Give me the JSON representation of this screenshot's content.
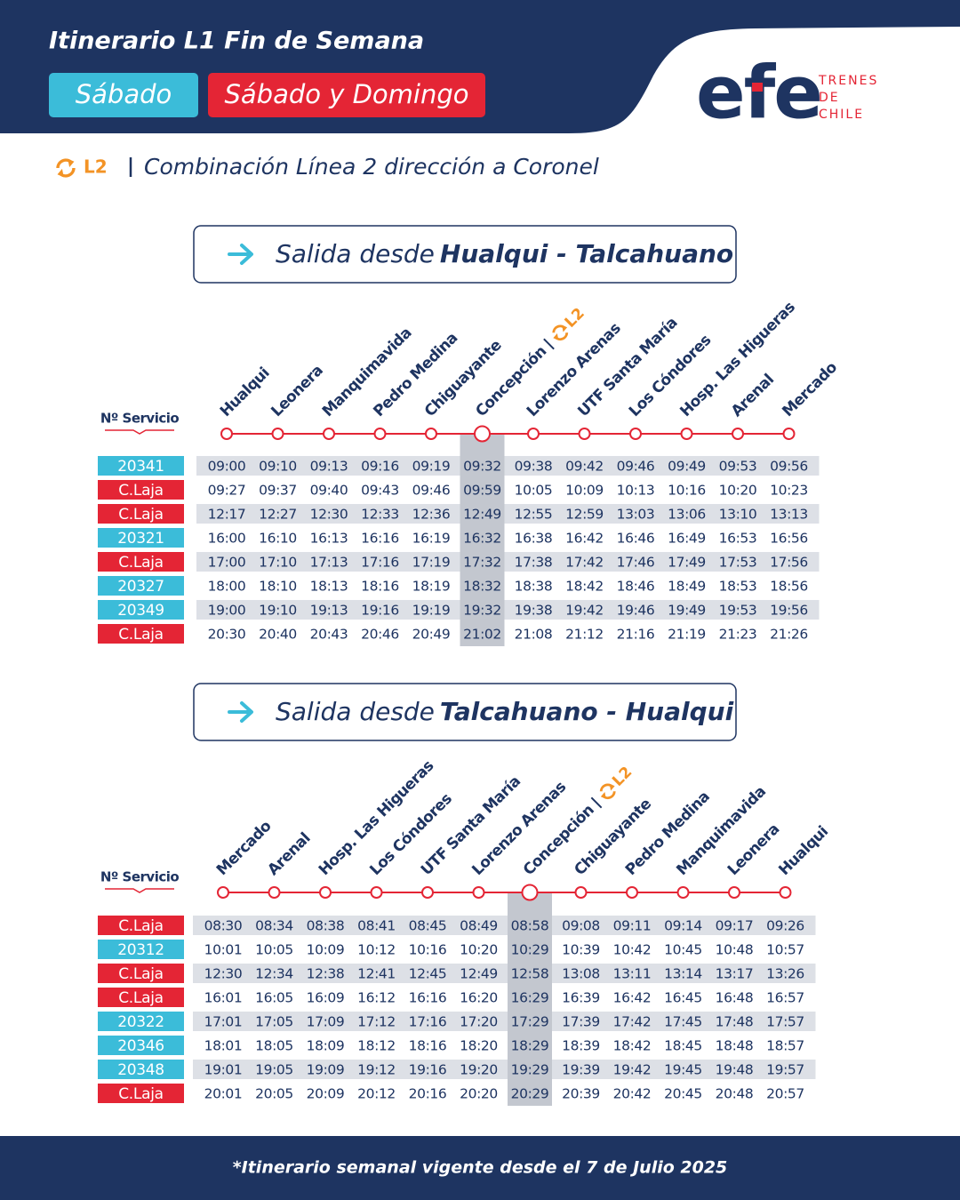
{
  "header": {
    "title": "Itinerario L1 Fin de Semana",
    "tags": [
      "Sábado",
      "Sábado y Domingo"
    ]
  },
  "logo": {
    "name": "efe",
    "tagline": [
      "TRENES",
      "DE",
      "CHILE"
    ]
  },
  "legend": {
    "badge": "L2",
    "text": "Combinación Línea 2 dirección a Coronel"
  },
  "sections": [
    {
      "heading": {
        "prefix": "Salida desde",
        "route": "Hualqui - Talcahuano"
      },
      "service_label": "Nº Servicio",
      "stations": [
        {
          "name": "Hualqui"
        },
        {
          "name": "Leonera"
        },
        {
          "name": "Manquimavida"
        },
        {
          "name": "Pedro Medina"
        },
        {
          "name": "Chiguayante"
        },
        {
          "name": "Concepción",
          "transfer": "L2"
        },
        {
          "name": "Lorenzo Arenas"
        },
        {
          "name": "UTF Santa María"
        },
        {
          "name": "Los Cóndores"
        },
        {
          "name": "Hosp. Las Higueras"
        },
        {
          "name": "Arenal"
        },
        {
          "name": "Mercado"
        }
      ],
      "rows": [
        {
          "service": "20341",
          "times": [
            "09:00",
            "09:10",
            "09:13",
            "09:16",
            "09:19",
            "09:32",
            "09:38",
            "09:42",
            "09:46",
            "09:49",
            "09:53",
            "09:56"
          ]
        },
        {
          "service": "C.Laja",
          "times": [
            "09:27",
            "09:37",
            "09:40",
            "09:43",
            "09:46",
            "09:59",
            "10:05",
            "10:09",
            "10:13",
            "10:16",
            "10:20",
            "10:23"
          ]
        },
        {
          "service": "C.Laja",
          "times": [
            "12:17",
            "12:27",
            "12:30",
            "12:33",
            "12:36",
            "12:49",
            "12:55",
            "12:59",
            "13:03",
            "13:06",
            "13:10",
            "13:13"
          ]
        },
        {
          "service": "20321",
          "times": [
            "16:00",
            "16:10",
            "16:13",
            "16:16",
            "16:19",
            "16:32",
            "16:38",
            "16:42",
            "16:46",
            "16:49",
            "16:53",
            "16:56"
          ]
        },
        {
          "service": "C.Laja",
          "times": [
            "17:00",
            "17:10",
            "17:13",
            "17:16",
            "17:19",
            "17:32",
            "17:38",
            "17:42",
            "17:46",
            "17:49",
            "17:53",
            "17:56"
          ]
        },
        {
          "service": "20327",
          "times": [
            "18:00",
            "18:10",
            "18:13",
            "18:16",
            "18:19",
            "18:32",
            "18:38",
            "18:42",
            "18:46",
            "18:49",
            "18:53",
            "18:56"
          ]
        },
        {
          "service": "20349",
          "times": [
            "19:00",
            "19:10",
            "19:13",
            "19:16",
            "19:19",
            "19:32",
            "19:38",
            "19:42",
            "19:46",
            "19:49",
            "19:53",
            "19:56"
          ]
        },
        {
          "service": "C.Laja",
          "times": [
            "20:30",
            "20:40",
            "20:43",
            "20:46",
            "20:49",
            "21:02",
            "21:08",
            "21:12",
            "21:16",
            "21:19",
            "21:23",
            "21:26"
          ]
        }
      ]
    },
    {
      "heading": {
        "prefix": "Salida desde",
        "route": "Talcahuano - Hualqui"
      },
      "service_label": "Nº Servicio",
      "stations": [
        {
          "name": "Mercado"
        },
        {
          "name": "Arenal"
        },
        {
          "name": "Hosp. Las Higueras"
        },
        {
          "name": "Los Cóndores"
        },
        {
          "name": "UTF Santa María"
        },
        {
          "name": "Lorenzo Arenas"
        },
        {
          "name": "Concepción",
          "transfer": "L2"
        },
        {
          "name": "Chiguayante"
        },
        {
          "name": "Pedro Medina"
        },
        {
          "name": "Manquimavida"
        },
        {
          "name": "Leonera"
        },
        {
          "name": "Hualqui"
        }
      ],
      "rows": [
        {
          "service": "C.Laja",
          "times": [
            "08:30",
            "08:34",
            "08:38",
            "08:41",
            "08:45",
            "08:49",
            "08:58",
            "09:08",
            "09:11",
            "09:14",
            "09:17",
            "09:26"
          ]
        },
        {
          "service": "20312",
          "times": [
            "10:01",
            "10:05",
            "10:09",
            "10:12",
            "10:16",
            "10:20",
            "10:29",
            "10:39",
            "10:42",
            "10:45",
            "10:48",
            "10:57"
          ]
        },
        {
          "service": "C.Laja",
          "times": [
            "12:30",
            "12:34",
            "12:38",
            "12:41",
            "12:45",
            "12:49",
            "12:58",
            "13:08",
            "13:11",
            "13:14",
            "13:17",
            "13:26"
          ]
        },
        {
          "service": "C.Laja",
          "times": [
            "16:01",
            "16:05",
            "16:09",
            "16:12",
            "16:16",
            "16:20",
            "16:29",
            "16:39",
            "16:42",
            "16:45",
            "16:48",
            "16:57"
          ]
        },
        {
          "service": "20322",
          "times": [
            "17:01",
            "17:05",
            "17:09",
            "17:12",
            "17:16",
            "17:20",
            "17:29",
            "17:39",
            "17:42",
            "17:45",
            "17:48",
            "17:57"
          ]
        },
        {
          "service": "20346",
          "times": [
            "18:01",
            "18:05",
            "18:09",
            "18:12",
            "18:16",
            "18:20",
            "18:29",
            "18:39",
            "18:42",
            "18:45",
            "18:48",
            "18:57"
          ]
        },
        {
          "service": "20348",
          "times": [
            "19:01",
            "19:05",
            "19:09",
            "19:12",
            "19:16",
            "19:20",
            "19:29",
            "19:39",
            "19:42",
            "19:45",
            "19:48",
            "19:57"
          ]
        },
        {
          "service": "C.Laja",
          "times": [
            "20:01",
            "20:05",
            "20:09",
            "20:12",
            "20:16",
            "20:20",
            "20:29",
            "20:39",
            "20:42",
            "20:45",
            "20:48",
            "20:57"
          ]
        }
      ]
    }
  ],
  "footer": "*Itinerario semanal vigente desde el 7 de Julio 2025"
}
